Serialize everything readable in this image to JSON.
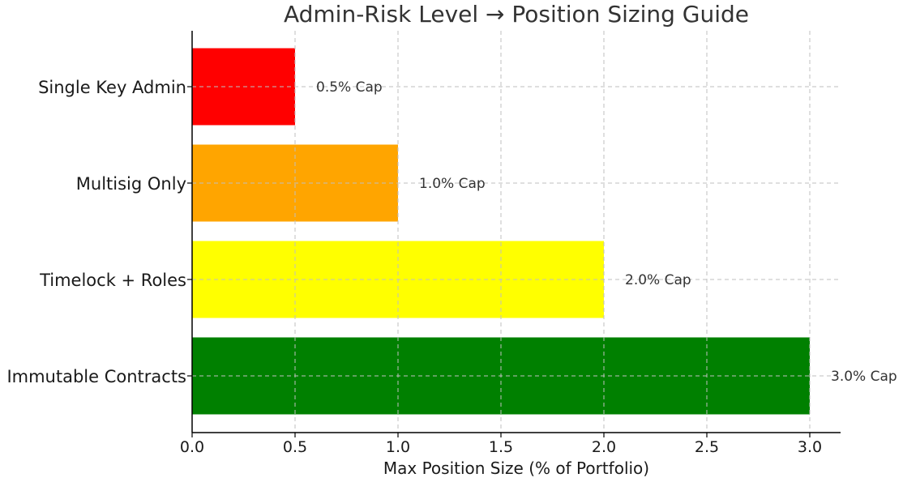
{
  "chart_data": {
    "type": "bar",
    "orientation": "horizontal",
    "title": "Admin-Risk Level → Position Sizing Guide",
    "xlabel": "Max Position Size (% of Portfolio)",
    "ylabel": "",
    "xlim": [
      0,
      3.15
    ],
    "xticks": [
      0.0,
      0.5,
      1.0,
      1.5,
      2.0,
      2.5,
      3.0
    ],
    "xtick_labels": [
      "0.0",
      "0.5",
      "1.0",
      "1.5",
      "2.0",
      "2.5",
      "3.0"
    ],
    "grid": true,
    "categories": [
      "Single Key Admin",
      "Multisig Only",
      "Timelock + Roles",
      "Immutable Contracts"
    ],
    "values": [
      0.5,
      1.0,
      2.0,
      3.0
    ],
    "colors": [
      "#ff0000",
      "#ffa500",
      "#ffff00",
      "#008000"
    ],
    "data_labels": [
      "0.5% Cap",
      "1.0% Cap",
      "2.0% Cap",
      "3.0% Cap"
    ]
  }
}
